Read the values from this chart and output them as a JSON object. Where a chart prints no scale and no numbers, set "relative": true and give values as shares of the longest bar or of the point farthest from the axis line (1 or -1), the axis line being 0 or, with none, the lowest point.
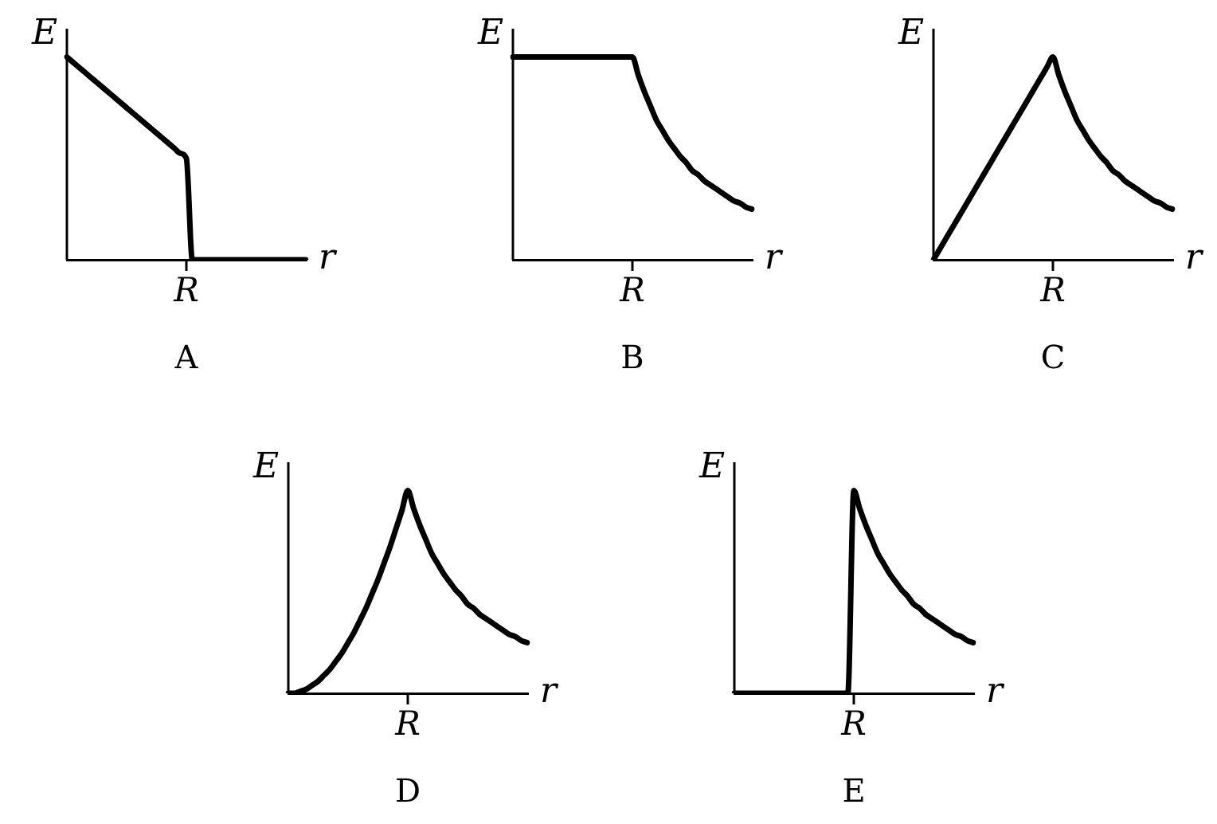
{
  "chart_data": [
    {
      "type": "line",
      "relative": true,
      "xlabel": "r",
      "ylabel": "E",
      "annotations": [
        "R",
        "A"
      ],
      "categories": [
        null,
        null,
        null,
        null,
        null,
        null,
        null,
        null,
        null,
        null,
        null,
        null,
        null,
        null,
        null,
        null,
        null,
        null,
        null,
        null,
        null,
        null,
        null,
        null,
        null,
        null,
        null,
        null,
        null,
        null,
        null,
        null,
        null,
        null,
        null,
        null,
        null,
        null,
        null,
        null,
        null
      ],
      "values": [
        1,
        0.975,
        0.95,
        0.925,
        0.9,
        0.875,
        0.85,
        0.825,
        0.8,
        0.775,
        0.75,
        0.725,
        0.7,
        0.675,
        0.65,
        0.625,
        0.6,
        0.575,
        0.55,
        0.525,
        0.5,
        0,
        0,
        0,
        0,
        0,
        0,
        0,
        0,
        0,
        0,
        0,
        0,
        0,
        0,
        0,
        0,
        0,
        0,
        0,
        0
      ],
      "color": "#000000",
      "marker": "none",
      "legend": false,
      "tick_labels": "x"
    },
    {
      "type": "line",
      "relative": true,
      "xlabel": "r",
      "ylabel": "E",
      "annotations": [
        "R",
        "B"
      ],
      "categories": [
        null,
        null,
        null,
        null,
        null,
        null,
        null,
        null,
        null,
        null,
        null,
        null,
        null,
        null,
        null,
        null,
        null,
        null,
        null,
        null,
        null,
        null,
        null,
        null,
        null,
        null,
        null,
        null,
        null,
        null,
        null,
        null,
        null,
        null,
        null,
        null,
        null,
        null,
        null,
        null,
        null
      ],
      "values": [
        1,
        1,
        1,
        1,
        1,
        1,
        1,
        1,
        1,
        1,
        1,
        1,
        1,
        1,
        1,
        1,
        1,
        1,
        1,
        1,
        1,
        0.91,
        0.83,
        0.76,
        0.69,
        0.64,
        0.59,
        0.55,
        0.51,
        0.48,
        0.44,
        0.42,
        0.39,
        0.37,
        0.35,
        0.33,
        0.31,
        0.29,
        0.28,
        0.26,
        0.25
      ],
      "color": "#000000",
      "marker": "none",
      "legend": false,
      "tick_labels": "x"
    },
    {
      "type": "line",
      "relative": true,
      "xlabel": "r",
      "ylabel": "E",
      "annotations": [
        "R",
        "C"
      ],
      "categories": [
        null,
        null,
        null,
        null,
        null,
        null,
        null,
        null,
        null,
        null,
        null,
        null,
        null,
        null,
        null,
        null,
        null,
        null,
        null,
        null,
        null,
        null,
        null,
        null,
        null,
        null,
        null,
        null,
        null,
        null,
        null,
        null,
        null,
        null,
        null,
        null,
        null,
        null,
        null,
        null,
        null
      ],
      "values": [
        0,
        0.05,
        0.1,
        0.15,
        0.2,
        0.25,
        0.3,
        0.35,
        0.4,
        0.45,
        0.5,
        0.55,
        0.6,
        0.65,
        0.7,
        0.75,
        0.8,
        0.85,
        0.9,
        0.95,
        1,
        0.91,
        0.83,
        0.76,
        0.69,
        0.64,
        0.59,
        0.55,
        0.51,
        0.48,
        0.44,
        0.42,
        0.39,
        0.37,
        0.35,
        0.33,
        0.31,
        0.29,
        0.28,
        0.26,
        0.25
      ],
      "color": "#000000",
      "marker": "none",
      "legend": false,
      "tick_labels": "x"
    },
    {
      "type": "line",
      "relative": true,
      "xlabel": "r",
      "ylabel": "E",
      "annotations": [
        "R",
        "D"
      ],
      "categories": [
        null,
        null,
        null,
        null,
        null,
        null,
        null,
        null,
        null,
        null,
        null,
        null,
        null,
        null,
        null,
        null,
        null,
        null,
        null,
        null,
        null,
        null,
        null,
        null,
        null,
        null,
        null,
        null,
        null,
        null,
        null,
        null,
        null,
        null,
        null,
        null,
        null,
        null,
        null,
        null,
        null
      ],
      "values": [
        0,
        0,
        0.01,
        0.02,
        0.04,
        0.06,
        0.09,
        0.12,
        0.16,
        0.2,
        0.25,
        0.3,
        0.36,
        0.42,
        0.49,
        0.56,
        0.64,
        0.72,
        0.81,
        0.9,
        1,
        0.91,
        0.83,
        0.76,
        0.69,
        0.64,
        0.59,
        0.55,
        0.51,
        0.48,
        0.44,
        0.42,
        0.39,
        0.37,
        0.35,
        0.33,
        0.31,
        0.29,
        0.28,
        0.26,
        0.25
      ],
      "color": "#000000",
      "marker": "none",
      "legend": false,
      "tick_labels": "x"
    },
    {
      "type": "line",
      "relative": true,
      "xlabel": "r",
      "ylabel": "E",
      "annotations": [
        "R",
        "E"
      ],
      "categories": [
        null,
        null,
        null,
        null,
        null,
        null,
        null,
        null,
        null,
        null,
        null,
        null,
        null,
        null,
        null,
        null,
        null,
        null,
        null,
        null,
        null,
        null,
        null,
        null,
        null,
        null,
        null,
        null,
        null,
        null,
        null,
        null,
        null,
        null,
        null,
        null,
        null,
        null,
        null,
        null,
        null
      ],
      "values": [
        0,
        0,
        0,
        0,
        0,
        0,
        0,
        0,
        0,
        0,
        0,
        0,
        0,
        0,
        0,
        0,
        0,
        0,
        0,
        0,
        1,
        0.91,
        0.83,
        0.76,
        0.69,
        0.64,
        0.59,
        0.55,
        0.51,
        0.48,
        0.44,
        0.42,
        0.39,
        0.37,
        0.35,
        0.33,
        0.31,
        0.29,
        0.28,
        0.26,
        0.25
      ],
      "color": "#000000",
      "marker": "none",
      "legend": false,
      "tick_labels": "x"
    }
  ]
}
